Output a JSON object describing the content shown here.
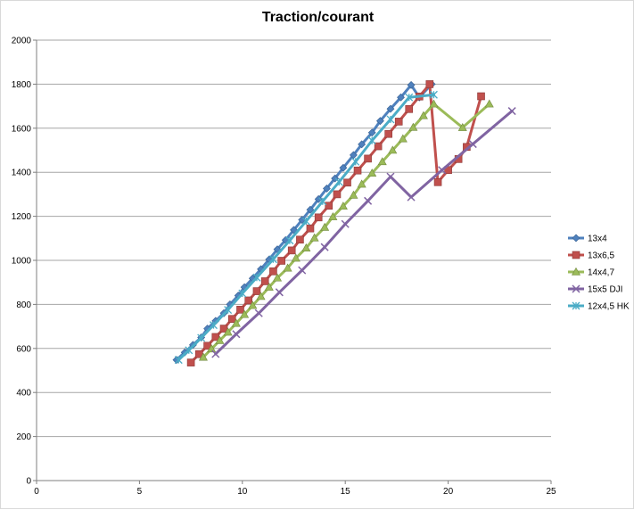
{
  "chart_data": {
    "type": "line",
    "title": "Traction/courant",
    "xlim": [
      0,
      25
    ],
    "ylim": [
      0,
      2000
    ],
    "xticks": [
      "0",
      "5",
      "10",
      "15",
      "20",
      "25"
    ],
    "yticks": [
      "0",
      "200",
      "400",
      "600",
      "800",
      "1000",
      "1200",
      "1400",
      "1600",
      "1800",
      "2000"
    ],
    "grid": "horizontal",
    "legend_position": "right",
    "series": [
      {
        "name": "13x4",
        "color": "#4f81bd",
        "marker": "diamond",
        "points": [
          [
            6.8,
            548
          ],
          [
            7.2,
            582
          ],
          [
            7.6,
            616
          ],
          [
            8.0,
            650
          ],
          [
            8.3,
            690
          ],
          [
            8.7,
            725
          ],
          [
            9.1,
            760
          ],
          [
            9.4,
            800
          ],
          [
            9.8,
            840
          ],
          [
            10.1,
            878
          ],
          [
            10.5,
            918
          ],
          [
            10.9,
            960
          ],
          [
            11.3,
            1004
          ],
          [
            11.7,
            1050
          ],
          [
            12.1,
            1092
          ],
          [
            12.5,
            1138
          ],
          [
            12.9,
            1184
          ],
          [
            13.3,
            1230
          ],
          [
            13.7,
            1278
          ],
          [
            14.1,
            1326
          ],
          [
            14.5,
            1372
          ],
          [
            14.9,
            1420
          ],
          [
            15.4,
            1478
          ],
          [
            15.8,
            1527
          ],
          [
            16.3,
            1580
          ],
          [
            16.7,
            1633
          ],
          [
            17.2,
            1688
          ],
          [
            17.7,
            1740
          ],
          [
            18.2,
            1796
          ],
          [
            18.6,
            1740
          ],
          [
            19.2,
            1800
          ]
        ]
      },
      {
        "name": "13x6,5",
        "color": "#c0504d",
        "marker": "square",
        "points": [
          [
            7.5,
            536
          ],
          [
            7.9,
            574
          ],
          [
            8.3,
            612
          ],
          [
            8.7,
            652
          ],
          [
            9.1,
            690
          ],
          [
            9.5,
            734
          ],
          [
            9.9,
            776
          ],
          [
            10.3,
            818
          ],
          [
            10.7,
            860
          ],
          [
            11.1,
            905
          ],
          [
            11.5,
            950
          ],
          [
            11.9,
            998
          ],
          [
            12.4,
            1045
          ],
          [
            12.8,
            1094
          ],
          [
            13.3,
            1145
          ],
          [
            13.7,
            1195
          ],
          [
            14.2,
            1248
          ],
          [
            14.6,
            1300
          ],
          [
            15.1,
            1353
          ],
          [
            15.6,
            1408
          ],
          [
            16.1,
            1462
          ],
          [
            16.6,
            1518
          ],
          [
            17.1,
            1574
          ],
          [
            17.6,
            1630
          ],
          [
            18.1,
            1687
          ],
          [
            18.6,
            1744
          ],
          [
            19.1,
            1800
          ],
          [
            19.5,
            1355
          ],
          [
            20.0,
            1410
          ],
          [
            20.5,
            1460
          ],
          [
            20.9,
            1515
          ],
          [
            21.6,
            1745
          ]
        ]
      },
      {
        "name": "14x4,7",
        "color": "#9bbb59",
        "marker": "triangle",
        "points": [
          [
            8.1,
            560
          ],
          [
            8.5,
            598
          ],
          [
            8.9,
            636
          ],
          [
            9.3,
            674
          ],
          [
            9.7,
            714
          ],
          [
            10.1,
            754
          ],
          [
            10.5,
            795
          ],
          [
            10.9,
            836
          ],
          [
            11.3,
            878
          ],
          [
            11.7,
            920
          ],
          [
            12.2,
            965
          ],
          [
            12.6,
            1010
          ],
          [
            13.1,
            1056
          ],
          [
            13.5,
            1102
          ],
          [
            14.0,
            1150
          ],
          [
            14.4,
            1198
          ],
          [
            14.9,
            1246
          ],
          [
            15.4,
            1296
          ],
          [
            15.8,
            1346
          ],
          [
            16.3,
            1396
          ],
          [
            16.8,
            1448
          ],
          [
            17.3,
            1500
          ],
          [
            17.8,
            1552
          ],
          [
            18.3,
            1604
          ],
          [
            18.8,
            1657
          ],
          [
            19.3,
            1710
          ],
          [
            20.7,
            1603
          ],
          [
            22.0,
            1710
          ]
        ]
      },
      {
        "name": "15x5 DJI",
        "color": "#8064a2",
        "marker": "x",
        "points": [
          [
            8.7,
            575
          ],
          [
            9.7,
            665
          ],
          [
            10.8,
            760
          ],
          [
            11.8,
            855
          ],
          [
            12.9,
            955
          ],
          [
            14.0,
            1060
          ],
          [
            15.0,
            1165
          ],
          [
            16.1,
            1270
          ],
          [
            17.2,
            1380
          ],
          [
            18.2,
            1287
          ],
          [
            19.7,
            1410
          ],
          [
            21.2,
            1528
          ],
          [
            23.1,
            1678
          ]
        ]
      },
      {
        "name": "12x4,5 HK",
        "color": "#4bacc6",
        "marker": "star",
        "points": [
          [
            6.9,
            548
          ],
          [
            7.4,
            592
          ],
          [
            8.0,
            648
          ],
          [
            8.6,
            706
          ],
          [
            9.3,
            775
          ],
          [
            10.0,
            850
          ],
          [
            10.7,
            922
          ],
          [
            11.5,
            1005
          ],
          [
            12.3,
            1090
          ],
          [
            13.1,
            1178
          ],
          [
            13.9,
            1268
          ],
          [
            14.7,
            1356
          ],
          [
            15.5,
            1448
          ],
          [
            16.3,
            1544
          ],
          [
            17.2,
            1640
          ],
          [
            18.1,
            1740
          ],
          [
            19.3,
            1752
          ]
        ]
      }
    ]
  }
}
